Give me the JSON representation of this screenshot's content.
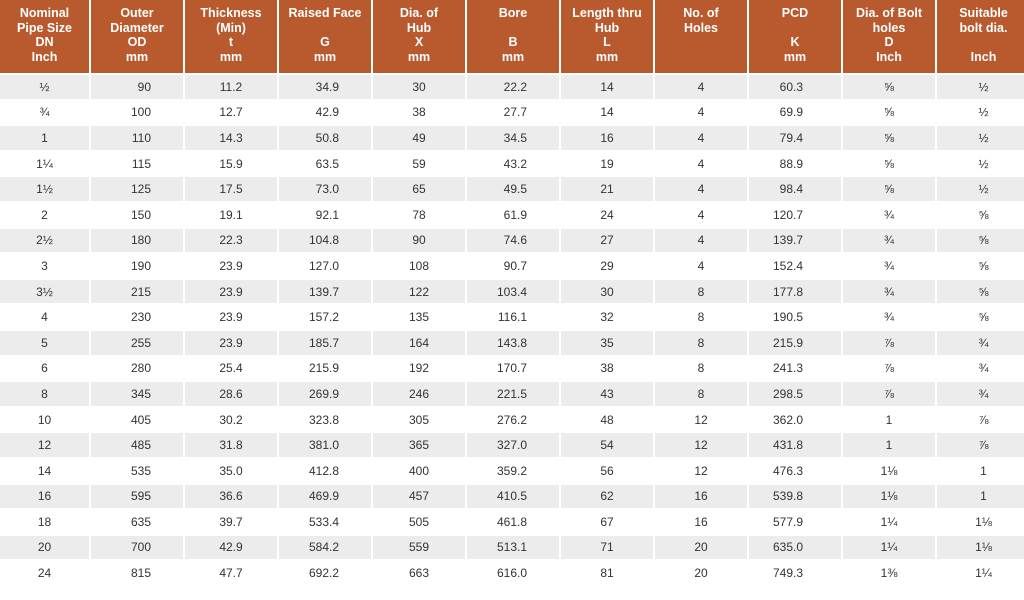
{
  "headers": [
    [
      "Nominal",
      "Pipe Size",
      "DN",
      "Inch"
    ],
    [
      "Outer",
      "Diameter",
      "OD",
      "mm"
    ],
    [
      "Thickness",
      "(Min)",
      "t",
      "mm"
    ],
    [
      "Raised Face",
      "",
      "G",
      "mm"
    ],
    [
      "Dia. of",
      "Hub",
      "X",
      "mm"
    ],
    [
      "Bore",
      "",
      "B",
      "mm"
    ],
    [
      "Length thru",
      "Hub",
      "L",
      "mm"
    ],
    [
      "No. of",
      "Holes",
      "",
      ""
    ],
    [
      "PCD",
      "",
      "K",
      "mm"
    ],
    [
      "Dia. of Bolt",
      "holes",
      "D",
      "Inch"
    ],
    [
      "Suitable",
      "bolt dia.",
      "",
      "Inch"
    ]
  ],
  "rows": [
    [
      "½",
      "90",
      "11.2",
      "34.9",
      "30",
      "22.2",
      "14",
      "4",
      "60.3",
      "⅝",
      "½"
    ],
    [
      "¾",
      "100",
      "12.7",
      "42.9",
      "38",
      "27.7",
      "14",
      "4",
      "69.9",
      "⅝",
      "½"
    ],
    [
      "1",
      "110",
      "14.3",
      "50.8",
      "49",
      "34.5",
      "16",
      "4",
      "79.4",
      "⅝",
      "½"
    ],
    [
      "1¼",
      "115",
      "15.9",
      "63.5",
      "59",
      "43.2",
      "19",
      "4",
      "88.9",
      "⅝",
      "½"
    ],
    [
      "1½",
      "125",
      "17.5",
      "73.0",
      "65",
      "49.5",
      "21",
      "4",
      "98.4",
      "⅝",
      "½"
    ],
    [
      "2",
      "150",
      "19.1",
      "92.1",
      "78",
      "61.9",
      "24",
      "4",
      "120.7",
      "¾",
      "⅝"
    ],
    [
      "2½",
      "180",
      "22.3",
      "104.8",
      "90",
      "74.6",
      "27",
      "4",
      "139.7",
      "¾",
      "⅝"
    ],
    [
      "3",
      "190",
      "23.9",
      "127.0",
      "108",
      "90.7",
      "29",
      "4",
      "152.4",
      "¾",
      "⅝"
    ],
    [
      "3½",
      "215",
      "23.9",
      "139.7",
      "122",
      "103.4",
      "30",
      "8",
      "177.8",
      "¾",
      "⅝"
    ],
    [
      "4",
      "230",
      "23.9",
      "157.2",
      "135",
      "116.1",
      "32",
      "8",
      "190.5",
      "¾",
      "⅝"
    ],
    [
      "5",
      "255",
      "23.9",
      "185.7",
      "164",
      "143.8",
      "35",
      "8",
      "215.9",
      "⅞",
      "¾"
    ],
    [
      "6",
      "280",
      "25.4",
      "215.9",
      "192",
      "170.7",
      "38",
      "8",
      "241.3",
      "⅞",
      "¾"
    ],
    [
      "8",
      "345",
      "28.6",
      "269.9",
      "246",
      "221.5",
      "43",
      "8",
      "298.5",
      "⅞",
      "¾"
    ],
    [
      "10",
      "405",
      "30.2",
      "323.8",
      "305",
      "276.2",
      "48",
      "12",
      "362.0",
      "1",
      "⅞"
    ],
    [
      "12",
      "485",
      "31.8",
      "381.0",
      "365",
      "327.0",
      "54",
      "12",
      "431.8",
      "1",
      "⅞"
    ],
    [
      "14",
      "535",
      "35.0",
      "412.8",
      "400",
      "359.2",
      "56",
      "12",
      "476.3",
      "1⅛",
      "1"
    ],
    [
      "16",
      "595",
      "36.6",
      "469.9",
      "457",
      "410.5",
      "62",
      "16",
      "539.8",
      "1⅛",
      "1"
    ],
    [
      "18",
      "635",
      "39.7",
      "533.4",
      "505",
      "461.8",
      "67",
      "16",
      "577.9",
      "1¼",
      "1⅛"
    ],
    [
      "20",
      "700",
      "42.9",
      "584.2",
      "559",
      "513.1",
      "71",
      "20",
      "635.0",
      "1¼",
      "1⅛"
    ],
    [
      "24",
      "815",
      "47.7",
      "692.2",
      "663",
      "616.0",
      "81",
      "20",
      "749.3",
      "1⅜",
      "1¼"
    ]
  ],
  "colors": {
    "header_bg": "#b85a2e",
    "header_text": "#ffffff",
    "row_odd": "#ececec",
    "row_even": "#ffffff",
    "cell_text": "#333333"
  }
}
